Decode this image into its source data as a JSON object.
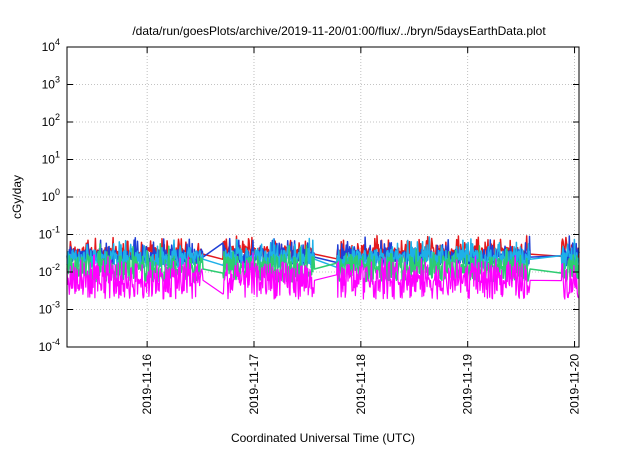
{
  "chart_data": {
    "type": "line",
    "title": "/data/run/goesPlots/archive/2019-11-20/01:00/flux/../bryn/5daysEarthData.plot",
    "xlabel": "Coordinated Universal Time (UTC)",
    "ylabel": "cGy/day",
    "x_range": [
      "2019-11-15T06:00",
      "2019-11-20T01:00"
    ],
    "ylim": [
      0.0001,
      10000
    ],
    "yscale": "log",
    "grid": true,
    "legend": "none",
    "x_ticks": [
      "2019-11-16",
      "2019-11-17",
      "2019-11-18",
      "2019-11-19",
      "2019-11-20"
    ],
    "y_ticks": [
      {
        "base": "10",
        "exp": "-4",
        "value": 0.0001
      },
      {
        "base": "10",
        "exp": "-3",
        "value": 0.001
      },
      {
        "base": "10",
        "exp": "-2",
        "value": 0.01
      },
      {
        "base": "10",
        "exp": "-1",
        "value": 0.1
      },
      {
        "base": "10",
        "exp": "0",
        "value": 1
      },
      {
        "base": "10",
        "exp": "1",
        "value": 10
      },
      {
        "base": "10",
        "exp": "2",
        "value": 100
      },
      {
        "base": "10",
        "exp": "3",
        "value": 1000
      },
      {
        "base": "10",
        "exp": "4",
        "value": 10000
      }
    ],
    "gaps": [
      {
        "start": "2019-11-16T12:30",
        "end": "2019-11-16T17:00"
      },
      {
        "start": "2019-11-17T13:30",
        "end": "2019-11-17T18:30"
      },
      {
        "start": "2019-11-19T14:00",
        "end": "2019-11-19T21:00"
      }
    ],
    "series": [
      {
        "color": "#e41a1c",
        "base": 0.03,
        "spread": 0.35,
        "spikes": 0.3
      },
      {
        "color": "#1f3fd6",
        "base": 0.025,
        "spread": 0.45,
        "spikes": 0.25
      },
      {
        "color": "#1fb0e8",
        "base": 0.022,
        "spread": 0.5,
        "spikes": 0.2
      },
      {
        "color": "#2ecc71",
        "base": 0.012,
        "spread": 0.7,
        "spikes": 0.15
      },
      {
        "color": "#ff00ff",
        "base": 0.006,
        "spread": 1.0,
        "spikes": 0.15
      }
    ]
  }
}
